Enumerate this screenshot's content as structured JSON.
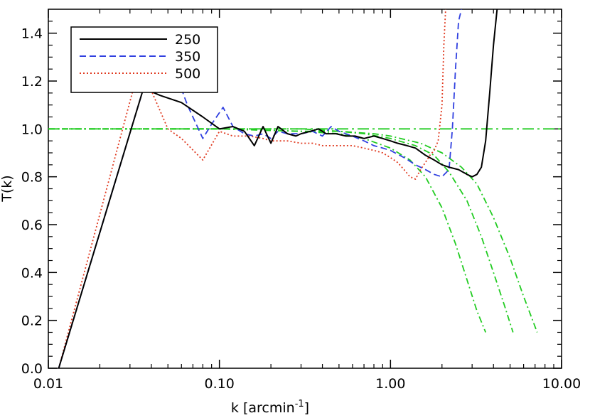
{
  "chart_data": {
    "type": "line",
    "xscale": "log",
    "xlim": [
      0.01,
      10.0
    ],
    "ylim": [
      0.0,
      1.5
    ],
    "xlabel": "k [arcmin",
    "xlabel_sup": "-1",
    "xlabel_close": "]",
    "ylabel": "T(k)",
    "xticks": [
      0.01,
      0.1,
      1.0,
      10.0
    ],
    "xtick_labels": [
      "0.01",
      "0.10",
      "1.00",
      "10.00"
    ],
    "yticks": [
      0.0,
      0.2,
      0.4,
      0.6,
      0.8,
      1.0,
      1.2,
      1.4
    ],
    "ytick_labels": [
      "0.0",
      "0.2",
      "0.4",
      "0.6",
      "0.8",
      "1.0",
      "1.2",
      "1.4"
    ],
    "legend_position": "top-left",
    "series": [
      {
        "name": "250",
        "color": "#000000",
        "dash": "solid",
        "x": [
          0.0115,
          0.036,
          0.045,
          0.06,
          0.08,
          0.1,
          0.12,
          0.14,
          0.16,
          0.18,
          0.2,
          0.22,
          0.25,
          0.28,
          0.3,
          0.34,
          0.38,
          0.42,
          0.48,
          0.55,
          0.62,
          0.7,
          0.8,
          0.9,
          1.0,
          1.1,
          1.25,
          1.4,
          1.6,
          1.8,
          2.0,
          2.2,
          2.5,
          2.8,
          3.0,
          3.2,
          3.4,
          3.6,
          3.8,
          4.0,
          4.2
        ],
        "y": [
          0.0,
          1.17,
          1.14,
          1.11,
          1.05,
          1.0,
          1.01,
          0.99,
          0.93,
          1.01,
          0.94,
          1.01,
          0.98,
          0.97,
          0.98,
          0.99,
          1.0,
          0.98,
          0.98,
          0.97,
          0.97,
          0.96,
          0.97,
          0.96,
          0.95,
          0.94,
          0.93,
          0.92,
          0.89,
          0.87,
          0.85,
          0.84,
          0.83,
          0.81,
          0.8,
          0.81,
          0.84,
          0.95,
          1.15,
          1.35,
          1.5
        ]
      },
      {
        "name": "350",
        "color": "#3040e0",
        "dash": "dashed",
        "x": [
          0.0115,
          0.036,
          0.045,
          0.057,
          0.065,
          0.08,
          0.09,
          0.105,
          0.12,
          0.14,
          0.16,
          0.18,
          0.2,
          0.22,
          0.25,
          0.3,
          0.35,
          0.4,
          0.45,
          0.5,
          0.6,
          0.7,
          0.8,
          0.9,
          1.0,
          1.2,
          1.4,
          1.6,
          1.8,
          2.0,
          2.2,
          2.3,
          2.4,
          2.5,
          2.6
        ],
        "y": [
          0.0,
          1.17,
          1.18,
          1.21,
          1.1,
          0.96,
          1.02,
          1.09,
          1.01,
          0.98,
          0.97,
          0.98,
          0.96,
          0.99,
          0.98,
          0.98,
          0.99,
          0.97,
          1.01,
          0.99,
          0.97,
          0.95,
          0.93,
          0.92,
          0.91,
          0.88,
          0.85,
          0.83,
          0.81,
          0.8,
          0.83,
          1.0,
          1.25,
          1.45,
          1.5
        ]
      },
      {
        "name": "500",
        "color": "#e03a20",
        "dash": "dotted",
        "x": [
          0.0115,
          0.034,
          0.04,
          0.05,
          0.06,
          0.08,
          0.1,
          0.12,
          0.15,
          0.18,
          0.2,
          0.25,
          0.3,
          0.35,
          0.4,
          0.5,
          0.6,
          0.7,
          0.8,
          0.9,
          1.0,
          1.1,
          1.2,
          1.3,
          1.4,
          1.5,
          1.6,
          1.7,
          1.8,
          1.9,
          2.0,
          2.05,
          2.1
        ],
        "y": [
          0.0,
          1.26,
          1.16,
          1.0,
          0.96,
          0.87,
          0.99,
          0.97,
          0.97,
          0.96,
          0.95,
          0.95,
          0.94,
          0.94,
          0.93,
          0.93,
          0.93,
          0.92,
          0.91,
          0.9,
          0.88,
          0.86,
          0.83,
          0.8,
          0.79,
          0.83,
          0.86,
          0.89,
          0.91,
          0.95,
          1.1,
          1.35,
          1.5
        ]
      },
      {
        "name": "",
        "color": "#22cc22",
        "dash": "dashdot",
        "x": [
          0.01,
          0.1,
          0.3,
          0.5,
          0.7,
          1.0,
          1.3,
          1.6,
          2.0,
          2.4,
          2.8,
          3.2,
          3.6
        ],
        "y": [
          1.0,
          1.0,
          0.99,
          0.98,
          0.96,
          0.92,
          0.87,
          0.8,
          0.67,
          0.52,
          0.37,
          0.24,
          0.15
        ]
      },
      {
        "name": "",
        "color": "#22cc22",
        "dash": "dashdot",
        "x": [
          0.01,
          0.1,
          0.3,
          0.5,
          0.7,
          1.0,
          1.4,
          1.8,
          2.2,
          2.8,
          3.4,
          4.0,
          4.6,
          5.2
        ],
        "y": [
          1.0,
          1.0,
          0.99,
          0.99,
          0.98,
          0.96,
          0.93,
          0.89,
          0.82,
          0.7,
          0.55,
          0.4,
          0.27,
          0.15
        ]
      },
      {
        "name": "",
        "color": "#22cc22",
        "dash": "dashdot",
        "x": [
          0.01,
          0.1,
          0.3,
          0.5,
          0.8,
          1.0,
          1.5,
          2.0,
          2.6,
          3.2,
          4.0,
          5.0,
          6.0,
          7.2
        ],
        "y": [
          1.0,
          1.0,
          1.0,
          0.99,
          0.98,
          0.97,
          0.94,
          0.9,
          0.84,
          0.77,
          0.63,
          0.46,
          0.3,
          0.15
        ]
      },
      {
        "name": "",
        "color": "#22cc22",
        "dash": "longdashdot",
        "x": [
          0.01,
          10.0
        ],
        "y": [
          1.0,
          1.0
        ]
      }
    ]
  }
}
